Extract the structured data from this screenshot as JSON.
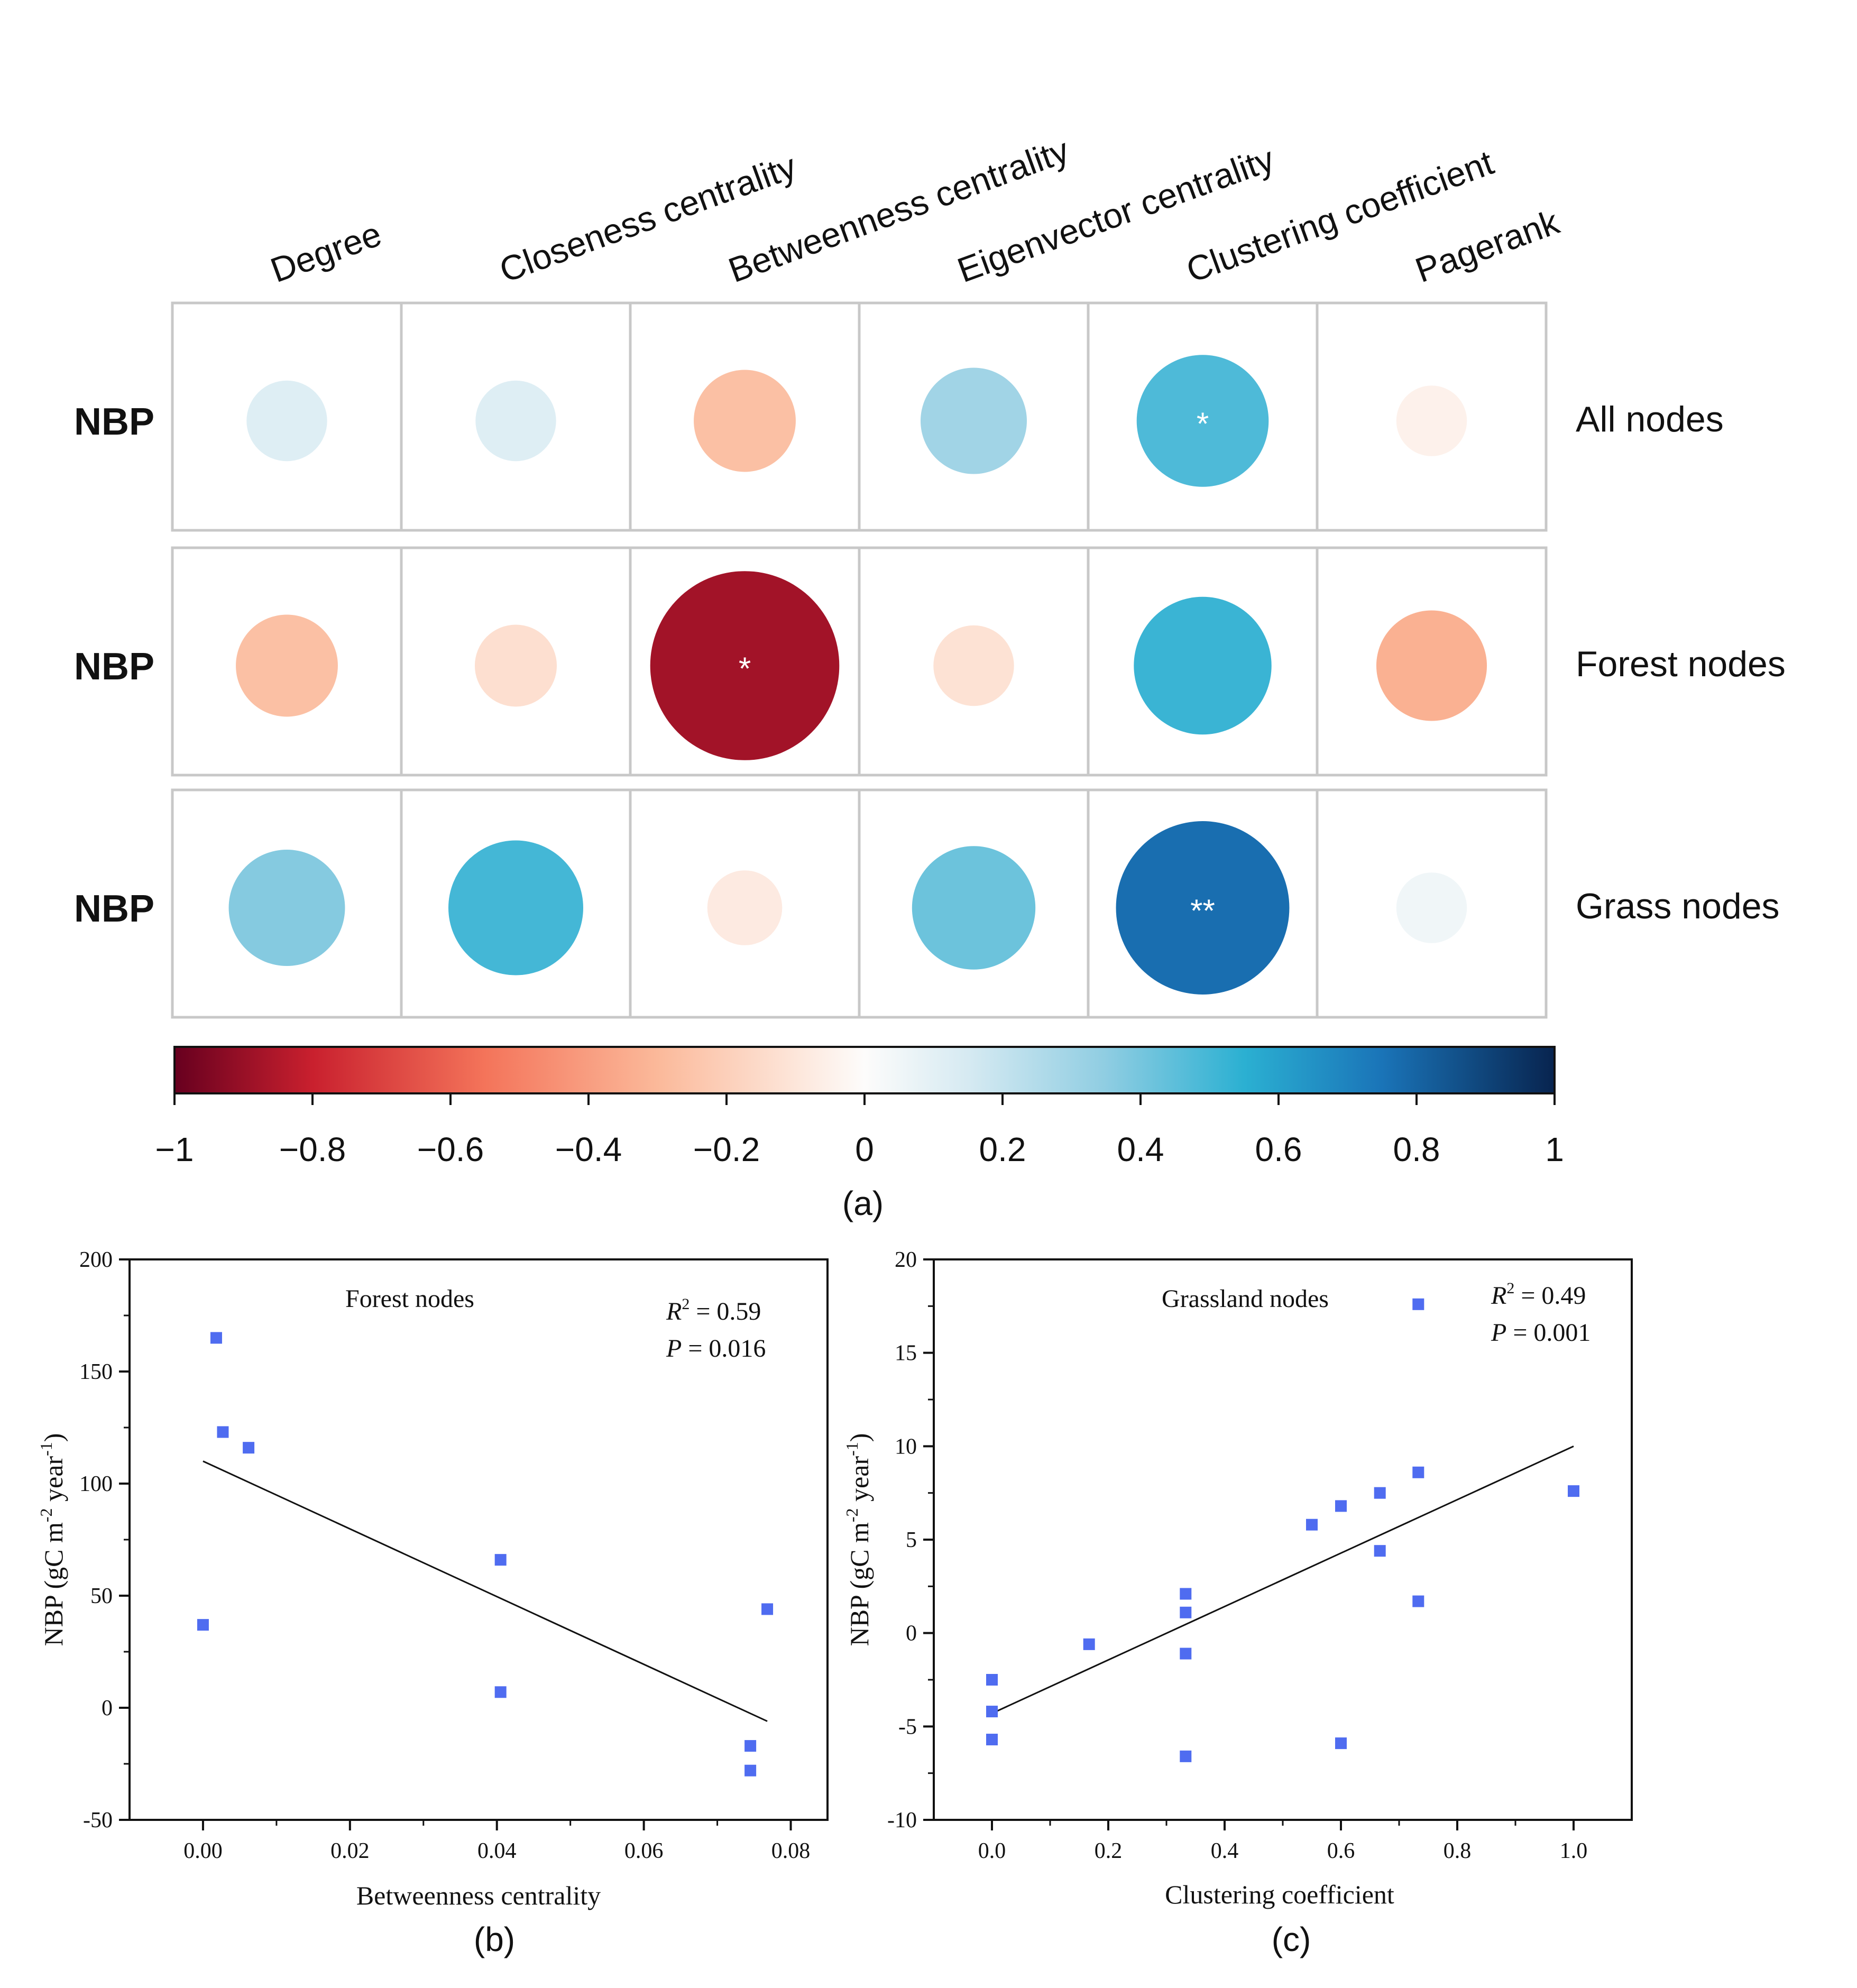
{
  "panel_labels": {
    "a": "(a)",
    "b": "(b)",
    "c": "(c)"
  },
  "chart_data": [
    {
      "type": "heatmap",
      "subtype": "correlation-circle-matrix",
      "columns": [
        "Degree",
        "Closeness centrality",
        "Betweenness centrality",
        "Eigenvector centrality",
        "Clustering coefficient",
        "Pagerank"
      ],
      "rows": [
        {
          "label": "NBP",
          "group": "All nodes",
          "values": [
            0.12,
            0.12,
            -0.27,
            0.3,
            0.48,
            -0.05
          ],
          "sig": [
            "",
            "",
            "",
            "",
            "*",
            ""
          ]
        },
        {
          "label": "NBP",
          "group": "Forest nodes",
          "values": [
            -0.27,
            -0.13,
            -0.88,
            -0.12,
            0.52,
            -0.33
          ],
          "sig": [
            "",
            "",
            "*",
            "",
            "",
            ""
          ]
        },
        {
          "label": "NBP",
          "group": "Grass nodes",
          "values": [
            0.37,
            0.5,
            -0.08,
            0.42,
            0.77,
            0.05
          ],
          "sig": [
            "",
            "",
            "",
            "",
            "**",
            ""
          ]
        }
      ],
      "colorbar": {
        "range": [
          -1,
          1
        ],
        "ticks": [
          -1,
          -0.8,
          -0.6,
          -0.4,
          -0.2,
          0,
          0.2,
          0.4,
          0.6,
          0.8,
          1
        ],
        "tick_labels": [
          "−1",
          "−0.8",
          "−0.6",
          "−0.4",
          "−0.2",
          "0",
          "0.2",
          "0.4",
          "0.6",
          "0.8",
          "1"
        ],
        "stops": [
          {
            "v": -1,
            "color": "#67001f"
          },
          {
            "v": -0.8,
            "color": "#c9202e"
          },
          {
            "v": -0.55,
            "color": "#f4745a"
          },
          {
            "v": -0.3,
            "color": "#fbb99a"
          },
          {
            "v": -0.1,
            "color": "#fde6da"
          },
          {
            "v": 0,
            "color": "#fdfcfb"
          },
          {
            "v": 0.15,
            "color": "#d6eaf2"
          },
          {
            "v": 0.35,
            "color": "#8fcde2"
          },
          {
            "v": 0.55,
            "color": "#2bb0d2"
          },
          {
            "v": 0.75,
            "color": "#1a74b8"
          },
          {
            "v": 1,
            "color": "#08244f"
          }
        ]
      }
    },
    {
      "type": "scatter",
      "title": "Forest nodes",
      "xlabel": "Betweenness centrality",
      "ylabel_main": "NBP (gC m",
      "ylabel_sup1": "-2",
      "ylabel_mid": " year",
      "ylabel_sup2": "-1",
      "ylabel_end": ")",
      "xlim": [
        -0.01,
        0.085
      ],
      "ylim": [
        -50,
        200
      ],
      "xticks": [
        0,
        0.02,
        0.04,
        0.06,
        0.08
      ],
      "xtick_labels": [
        "0.00",
        "0.02",
        "0.04",
        "0.06",
        "0.08"
      ],
      "yticks": [
        -50,
        0,
        50,
        100,
        150,
        200
      ],
      "ytick_labels": [
        "-50",
        "0",
        "50",
        "100",
        "150",
        "200"
      ],
      "r2_label": "R",
      "r2_sup": "2",
      "r2_text": " = 0.59",
      "p_label": "P",
      "p_text": "  = 0.016",
      "points": [
        {
          "x": 0.0,
          "y": 37
        },
        {
          "x": 0.0018,
          "y": 165
        },
        {
          "x": 0.0027,
          "y": 123
        },
        {
          "x": 0.0062,
          "y": 116
        },
        {
          "x": 0.0405,
          "y": 66
        },
        {
          "x": 0.0405,
          "y": 7
        },
        {
          "x": 0.0745,
          "y": -17
        },
        {
          "x": 0.0745,
          "y": -28
        },
        {
          "x": 0.0768,
          "y": 44
        }
      ],
      "fit": {
        "x": [
          0.0,
          0.0768
        ],
        "y": [
          110,
          -6
        ]
      },
      "marker_color": "#4f6cf0"
    },
    {
      "type": "scatter",
      "title": "Grassland nodes",
      "xlabel": "Clustering coefficient",
      "ylabel_main": "NBP (gC m",
      "ylabel_sup1": "-2",
      "ylabel_mid": " year",
      "ylabel_sup2": "-1",
      "ylabel_end": ")",
      "xlim": [
        -0.1,
        1.1
      ],
      "ylim": [
        -10,
        20
      ],
      "xticks": [
        0,
        0.2,
        0.4,
        0.6,
        0.8,
        1.0
      ],
      "xtick_labels": [
        "0.0",
        "0.2",
        "0.4",
        "0.6",
        "0.8",
        "1.0"
      ],
      "yticks": [
        -10,
        -5,
        0,
        5,
        10,
        15,
        20
      ],
      "ytick_labels": [
        "-10",
        "-5",
        "0",
        "5",
        "10",
        "15",
        "20"
      ],
      "r2_label": "R",
      "r2_sup": "2",
      "r2_text": " = 0.49",
      "p_label": "P",
      "p_text": "  = 0.001",
      "points": [
        {
          "x": 0.0,
          "y": -2.5
        },
        {
          "x": 0.0,
          "y": -4.2
        },
        {
          "x": 0.0,
          "y": -5.7
        },
        {
          "x": 0.167,
          "y": -0.6
        },
        {
          "x": 0.333,
          "y": 2.1
        },
        {
          "x": 0.333,
          "y": 1.1
        },
        {
          "x": 0.333,
          "y": -1.1
        },
        {
          "x": 0.333,
          "y": -6.6
        },
        {
          "x": 0.55,
          "y": 5.8
        },
        {
          "x": 0.6,
          "y": 6.8
        },
        {
          "x": 0.6,
          "y": -5.9
        },
        {
          "x": 0.667,
          "y": 7.5
        },
        {
          "x": 0.667,
          "y": 4.4
        },
        {
          "x": 0.733,
          "y": 8.6
        },
        {
          "x": 0.733,
          "y": 1.7
        },
        {
          "x": 0.733,
          "y": 17.6
        },
        {
          "x": 1.0,
          "y": 7.6
        }
      ],
      "fit": {
        "x": [
          0.0,
          1.0
        ],
        "y": [
          -4.3,
          10.0
        ]
      },
      "marker_color": "#4f6cf0"
    }
  ]
}
